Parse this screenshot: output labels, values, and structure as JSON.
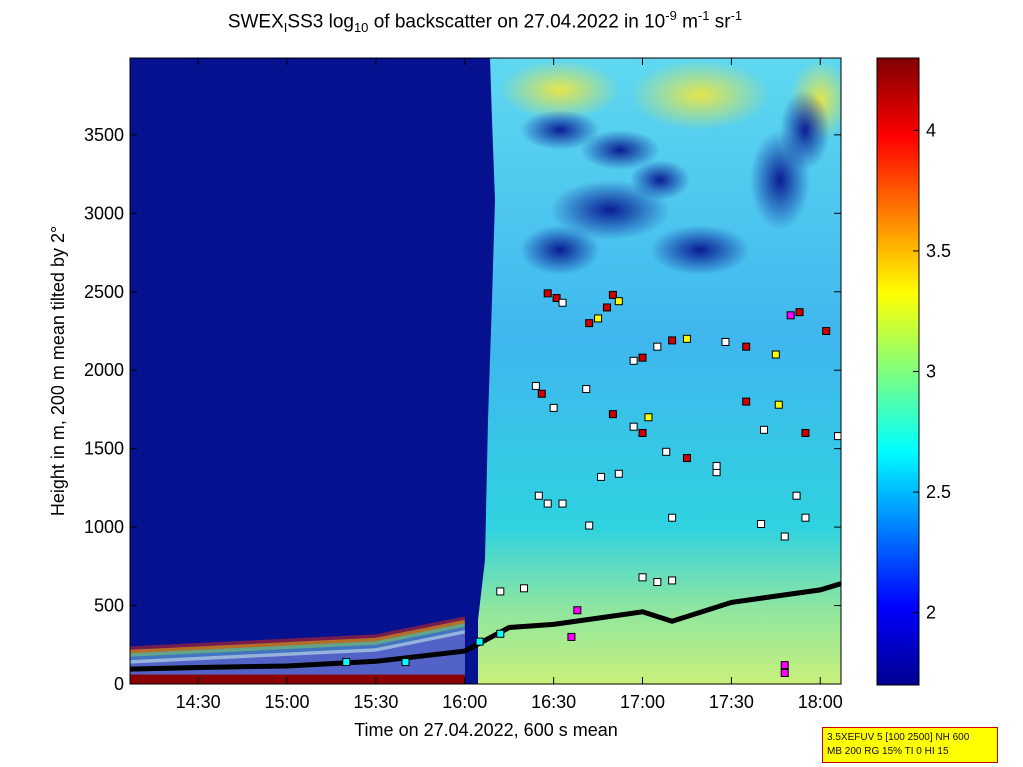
{
  "title_parts": {
    "main": "SWEX",
    "sub1": "I",
    "mid": "SS3 log",
    "sub2": "10",
    "rest": " of backscatter on 27.04.2022 in 10",
    "sup1": "-9",
    "unit1": " m",
    "sup2": "-1",
    "unit2": " sr",
    "sup3": "-1"
  },
  "info_box": {
    "line1": "3.5XEFUV 5 [100 2500] NH 600",
    "line2": "MB 200 RG 15% TI 0 HI 15"
  },
  "chart_data": {
    "type": "heatmap",
    "title": "SWEXISS3 log10 of backscatter on 27.04.2022 in 10-9 m-1 sr-1",
    "xlabel": "Time on 27.04.2022, 600 s mean",
    "ylabel": "Height in m, 200 m mean tilted by 2°",
    "x_ticks": [
      "14:30",
      "15:00",
      "15:30",
      "16:00",
      "16:30",
      "17:00",
      "17:30",
      "18:00"
    ],
    "y_ticks": [
      "0",
      "500",
      "1000",
      "1500",
      "2000",
      "2500",
      "3000",
      "3500"
    ],
    "xlim": [
      "14:07",
      "18:07"
    ],
    "ylim": [
      0,
      3990
    ],
    "colorbar": {
      "min": 1.7,
      "max": 4.3,
      "ticks": [
        "2",
        "2.5",
        "3",
        "3.5",
        "4"
      ],
      "colormap": "jet"
    },
    "boundary_layer_height": {
      "name": "black line",
      "x": [
        "14:07",
        "14:30",
        "15:00",
        "15:30",
        "16:00",
        "16:15",
        "16:30",
        "16:45",
        "17:00",
        "17:10",
        "17:30",
        "17:45",
        "18:00",
        "18:07"
      ],
      "y": [
        95,
        105,
        115,
        145,
        210,
        360,
        380,
        420,
        460,
        400,
        520,
        560,
        600,
        640
      ]
    },
    "layer_marks": {
      "colors": [
        "#ffffff",
        "#cc0000",
        "#ffff00",
        "#ff00ff",
        "#00ffff"
      ],
      "points": [
        [
          "16:28",
          2490,
          1
        ],
        [
          "16:31",
          2460,
          1
        ],
        [
          "16:33",
          2430,
          0
        ],
        [
          "16:42",
          2300,
          1
        ],
        [
          "16:45",
          2330,
          2
        ],
        [
          "16:48",
          2400,
          1
        ],
        [
          "16:50",
          2480,
          1
        ],
        [
          "16:52",
          2440,
          2
        ],
        [
          "16:57",
          2060,
          0
        ],
        [
          "17:00",
          2080,
          1
        ],
        [
          "17:05",
          2150,
          0
        ],
        [
          "17:10",
          2190,
          1
        ],
        [
          "17:15",
          2200,
          2
        ],
        [
          "17:28",
          2180,
          0
        ],
        [
          "17:35",
          2150,
          1
        ],
        [
          "17:45",
          2100,
          2
        ],
        [
          "17:50",
          2350,
          3
        ],
        [
          "17:53",
          2370,
          1
        ],
        [
          "18:02",
          2250,
          1
        ],
        [
          "16:24",
          1900,
          0
        ],
        [
          "16:26",
          1850,
          1
        ],
        [
          "16:30",
          1760,
          0
        ],
        [
          "16:41",
          1880,
          0
        ],
        [
          "16:50",
          1720,
          1
        ],
        [
          "16:57",
          1640,
          0
        ],
        [
          "17:00",
          1600,
          1
        ],
        [
          "17:02",
          1700,
          2
        ],
        [
          "17:08",
          1480,
          0
        ],
        [
          "17:15",
          1440,
          1
        ],
        [
          "17:25",
          1350,
          0
        ],
        [
          "17:35",
          1800,
          1
        ],
        [
          "17:41",
          1620,
          0
        ],
        [
          "17:46",
          1780,
          2
        ],
        [
          "17:55",
          1600,
          1
        ],
        [
          "18:06",
          1580,
          0
        ],
        [
          "16:25",
          1200,
          0
        ],
        [
          "16:28",
          1150,
          0
        ],
        [
          "16:33",
          1150,
          0
        ],
        [
          "16:42",
          1010,
          0
        ],
        [
          "16:46",
          1320,
          0
        ],
        [
          "16:52",
          1340,
          0
        ],
        [
          "17:10",
          1060,
          0
        ],
        [
          "17:25",
          1390,
          0
        ],
        [
          "17:40",
          1020,
          0
        ],
        [
          "17:48",
          940,
          0
        ],
        [
          "17:52",
          1200,
          0
        ],
        [
          "17:55",
          1060,
          0
        ],
        [
          "16:12",
          590,
          0
        ],
        [
          "16:20",
          610,
          0
        ],
        [
          "17:00",
          680,
          0
        ],
        [
          "17:05",
          650,
          0
        ],
        [
          "17:10",
          660,
          0
        ],
        [
          "16:38",
          470,
          3
        ],
        [
          "16:36",
          300,
          3
        ],
        [
          "17:48",
          120,
          3
        ],
        [
          "17:48",
          70,
          3
        ],
        [
          "16:05",
          270,
          4
        ],
        [
          "16:12",
          320,
          4
        ],
        [
          "15:20",
          140,
          4
        ],
        [
          "15:40",
          140,
          4
        ]
      ]
    }
  }
}
